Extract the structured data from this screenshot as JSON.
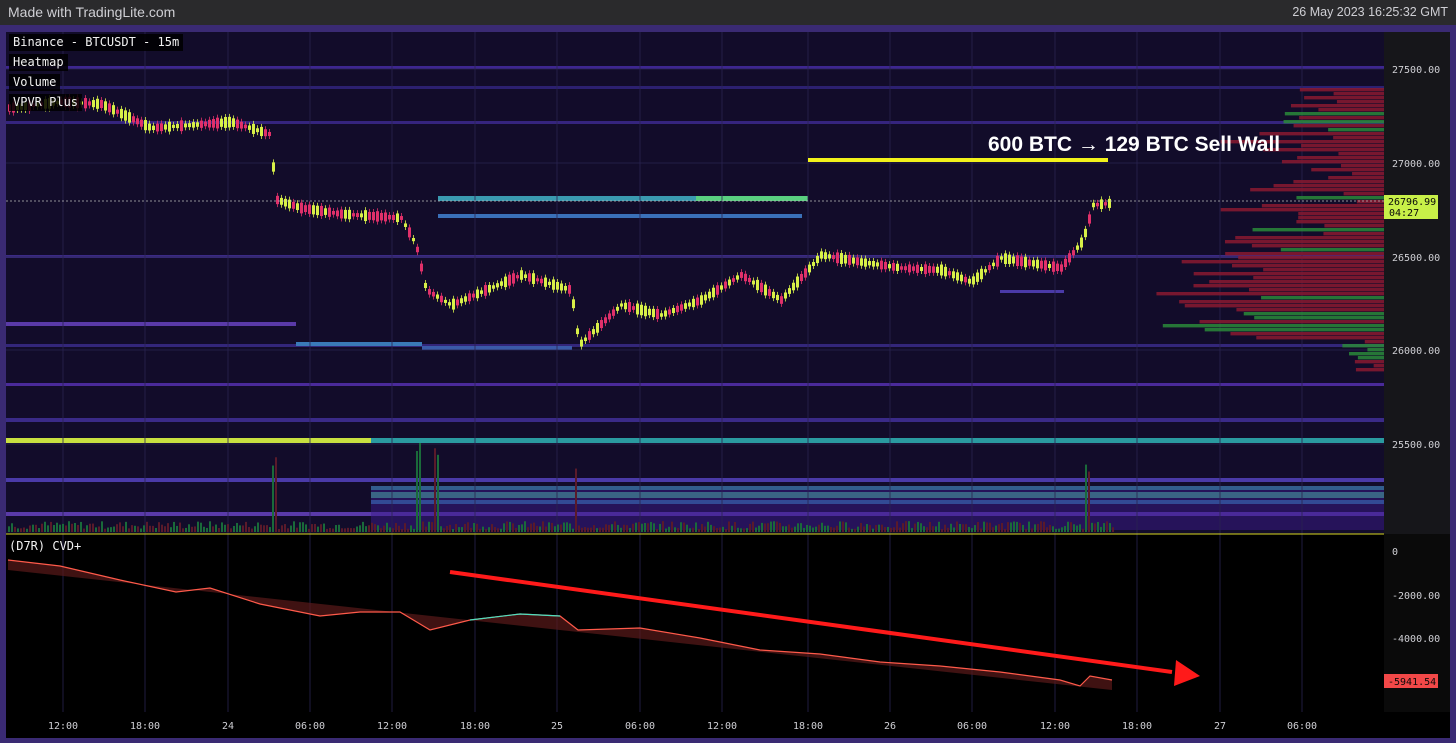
{
  "topbar": {
    "left_text": "Made with TradingLite.com",
    "right_text": "26 May 2023 16:25:32 GMT"
  },
  "labels": [
    "Binance - BTCUSDT - 15m",
    "Heatmap",
    "Volume",
    "VPVR Plus"
  ],
  "annotation": "600 BTC → 129 BTC Sell Wall",
  "price_axis": {
    "ticks": [
      "27500.00",
      "27000.00",
      "26500.00",
      "26000.00",
      "25500.00"
    ],
    "current_price": "26796.99",
    "countdown": "04:27"
  },
  "cvd": {
    "label": "(D7R) CVD+",
    "ticks": [
      "0",
      "-2000.00",
      "-4000.00"
    ],
    "current_value": "-5941.54"
  },
  "time_axis": [
    "12:00",
    "18:00",
    "24",
    "06:00",
    "12:00",
    "18:00",
    "25",
    "06:00",
    "12:00",
    "18:00",
    "26",
    "06:00",
    "12:00",
    "18:00",
    "27",
    "06:00"
  ],
  "colors": {
    "up": "#d8f048",
    "down": "#e0306a",
    "heatmap_bg": "#120c2a",
    "arrow": "#ff1a1a",
    "wall": "#f2f21a"
  }
}
